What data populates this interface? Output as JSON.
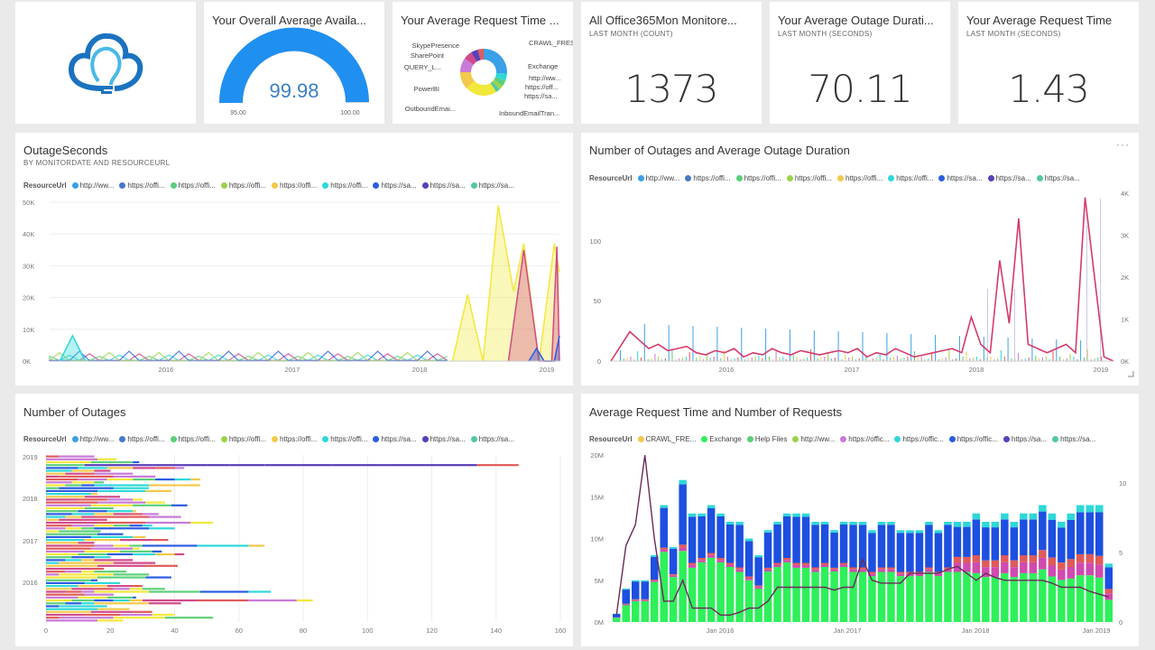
{
  "tiles": {
    "logo": {
      "icon": "lightbulb-cloud-logo"
    },
    "availability": {
      "title": "Your Overall Average Availa...",
      "value": "99.98",
      "min": "95.00",
      "max": "100.00",
      "fraction": 0.996
    },
    "request_time_donut": {
      "title": "Your Average Request Time ..."
    },
    "monitors": {
      "title": "All Office365Mon Monitore...",
      "subtitle": "LAST MONTH (COUNT)",
      "value": "1373"
    },
    "outage_duration": {
      "title": "Your Average Outage Durati...",
      "subtitle": "LAST MONTH (SECONDS)",
      "value": "70.11"
    },
    "request_time": {
      "title": "Your Average Request Time",
      "subtitle": "LAST MONTH (SECONDS)",
      "value": "1.43"
    },
    "outage_seconds": {
      "title": "OutageSeconds",
      "subtitle": "BY MONITORDATE AND RESOURCEURL"
    },
    "outages_duration": {
      "title": "Number of Outages and Average Outage Duration",
      "menu": "···"
    },
    "num_outages": {
      "title": "Number of Outages"
    },
    "req_time_count": {
      "title": "Average Request Time and Number of Requests"
    }
  },
  "legends": {
    "resource": {
      "title": "ResourceUrl",
      "items": [
        {
          "label": "http://ww...",
          "color": "#3aa0e8"
        },
        {
          "label": "https://offi...",
          "color": "#4a78c8"
        },
        {
          "label": "https://offi...",
          "color": "#5ccf7a"
        },
        {
          "label": "https://offi...",
          "color": "#9bd34a"
        },
        {
          "label": "https://offi...",
          "color": "#f2c94c"
        },
        {
          "label": "https://offi...",
          "color": "#2ed8d8"
        },
        {
          "label": "https://sa...",
          "color": "#2b5de0"
        },
        {
          "label": "https://sa...",
          "color": "#5a3fb8"
        },
        {
          "label": "https://sa...",
          "color": "#52c8a0"
        }
      ]
    },
    "requests": {
      "title": "ResourceUrl",
      "items": [
        {
          "label": "CRAWL_FRE...",
          "color": "#f2c94c"
        },
        {
          "label": "Exchange",
          "color": "#2ef05a"
        },
        {
          "label": "Help Files",
          "color": "#5ccf7a"
        },
        {
          "label": "http://ww...",
          "color": "#9bd34a"
        },
        {
          "label": "https://offic...",
          "color": "#c87ad8"
        },
        {
          "label": "https://offic...",
          "color": "#2ed8d8"
        },
        {
          "label": "https://offic...",
          "color": "#2b5de0"
        },
        {
          "label": "https://sa...",
          "color": "#5a3fb8"
        },
        {
          "label": "https://sa...",
          "color": "#52c8a0"
        }
      ]
    }
  },
  "chart_data": [
    {
      "type": "pie",
      "title": "Your Average Request Time ...",
      "slices": [
        {
          "label": "CRAWL_FRESH...",
          "value": 26,
          "color": "#3aa0e8"
        },
        {
          "label": "Exchange",
          "value": 5,
          "color": "#2ed8d8"
        },
        {
          "label": "http://ww...",
          "value": 4,
          "color": "#5ccf7a"
        },
        {
          "label": "https://off...",
          "value": 3,
          "color": "#9bd34a"
        },
        {
          "label": "https://sa...",
          "value": 3,
          "color": "#52c8a0"
        },
        {
          "label": "InboundEmailTran...",
          "value": 22,
          "color": "#f2e83a"
        },
        {
          "label": "OutboundEmai...",
          "value": 12,
          "color": "#f2c94c"
        },
        {
          "label": "PowerBI",
          "value": 10,
          "color": "#c87ad8"
        },
        {
          "label": "QUERY_L...",
          "value": 6,
          "color": "#d04a8a"
        },
        {
          "label": "SharePoint",
          "value": 5,
          "color": "#5a3fb8"
        },
        {
          "label": "SkypePresence",
          "value": 4,
          "color": "#e05a5a"
        }
      ]
    },
    {
      "type": "area",
      "title": "OutageSeconds",
      "x_ticks": [
        "2016",
        "2017",
        "2018",
        "2019"
      ],
      "y_ticks": [
        "50K",
        "40K",
        "30K",
        "20K",
        "10K",
        "0K"
      ],
      "ylim": [
        0,
        50000
      ],
      "series": [
        {
          "name": "https://offi... (yellow)",
          "color": "#f2e83a",
          "points": [
            [
              0.79,
              0
            ],
            [
              0.82,
              21000
            ],
            [
              0.85,
              0
            ],
            [
              0.88,
              49000
            ],
            [
              0.91,
              22000
            ],
            [
              0.93,
              37000
            ],
            [
              0.96,
              0
            ],
            [
              0.99,
              37000
            ],
            [
              1.0,
              28000
            ]
          ]
        },
        {
          "name": "https://sa... (magenta)",
          "color": "#d04a8a",
          "points": [
            [
              0.9,
              0
            ],
            [
              0.93,
              35000
            ],
            [
              0.96,
              0
            ],
            [
              0.985,
              0
            ],
            [
              0.995,
              36000
            ],
            [
              1.0,
              0
            ]
          ]
        },
        {
          "name": "http://ww... (cyan)",
          "color": "#2ed8d8",
          "points": [
            [
              0.02,
              0
            ],
            [
              0.045,
              8000
            ],
            [
              0.07,
              0
            ]
          ]
        },
        {
          "name": "https://sa... (blue)",
          "color": "#2b5de0",
          "points": [
            [
              0.94,
              0
            ],
            [
              0.955,
              4000
            ],
            [
              0.97,
              0
            ],
            [
              0.99,
              0
            ],
            [
              1.0,
              8000
            ]
          ]
        }
      ]
    },
    {
      "type": "bar",
      "title": "Number of Outages and Average Outage Duration",
      "y_ticks_left": [
        "100",
        "50",
        "0"
      ],
      "y_ticks_right": [
        "4K",
        "3K",
        "2K",
        "1K",
        "0K"
      ],
      "x_ticks": [
        "2016",
        "2017",
        "2018",
        "2019"
      ],
      "line_series": {
        "name": "Average Outage Duration",
        "color": "#d63a6a",
        "values": [
          0,
          350,
          700,
          500,
          300,
          400,
          250,
          300,
          350,
          200,
          150,
          250,
          200,
          300,
          100,
          200,
          150,
          300,
          200,
          150,
          250,
          200,
          150,
          200,
          250,
          200,
          300,
          100,
          200,
          150,
          300,
          200,
          100,
          150,
          200,
          250,
          300,
          200,
          1050,
          400,
          200,
          2400,
          900,
          3400,
          400,
          300,
          200,
          300,
          400,
          200,
          3900,
          2000,
          100,
          0
        ]
      }
    },
    {
      "type": "bar",
      "title": "Number of Outages",
      "orientation": "horizontal",
      "x_ticks": [
        "0",
        "20",
        "40",
        "60",
        "80",
        "100",
        "120",
        "140",
        "160"
      ],
      "y_ticks": [
        "2019",
        "2018",
        "2017",
        "2016"
      ],
      "xlim": [
        0,
        160
      ]
    },
    {
      "type": "bar",
      "title": "Average Request Time and Number of Requests",
      "y_ticks_left": [
        "20M",
        "15M",
        "10M",
        "5M",
        "0M"
      ],
      "y_ticks_right": [
        "10",
        "5",
        "0"
      ],
      "x_ticks": [
        "Jan 2016",
        "Jan 2017",
        "Jan 2018",
        "Jan 2019"
      ],
      "ylim": [
        0,
        20000000
      ],
      "stack_totals": [
        1,
        4,
        5,
        5,
        8,
        14,
        9,
        17,
        13,
        13,
        14,
        13,
        12,
        12,
        10,
        8,
        11,
        12,
        13,
        13,
        13,
        12,
        12,
        11,
        12,
        12,
        12,
        11,
        12,
        12,
        11,
        11,
        11,
        12,
        11,
        12,
        12,
        12,
        13,
        12,
        12,
        13,
        12,
        13,
        13,
        14,
        13,
        12,
        13,
        14,
        14,
        14,
        7
      ],
      "exchange_share": [
        0.5,
        0.5,
        0.5,
        0.5,
        0.6,
        0.6,
        0.6,
        0.5,
        0.5,
        0.55,
        0.55,
        0.55,
        0.55,
        0.5,
        0.5,
        0.5,
        0.55,
        0.55,
        0.55,
        0.5,
        0.5,
        0.5,
        0.55,
        0.55,
        0.55,
        0.5,
        0.5,
        0.5,
        0.5,
        0.5,
        0.5,
        0.5,
        0.5,
        0.5,
        0.5,
        0.5,
        0.5,
        0.5,
        0.45,
        0.45,
        0.45,
        0.45,
        0.45,
        0.45,
        0.45,
        0.45,
        0.42,
        0.42,
        0.4,
        0.4,
        0.4,
        0.38,
        0.38
      ],
      "line_values": [
        0.5,
        5.5,
        7,
        12,
        6,
        1.5,
        1.5,
        3,
        1,
        1,
        1,
        0.5,
        0.5,
        0.7,
        1,
        1,
        1.5,
        2.5,
        2.5,
        2.5,
        2.5,
        2.5,
        2.5,
        2.3,
        2.5,
        2.5,
        4.5,
        3,
        2.8,
        2.8,
        2.8,
        3.5,
        3.5,
        3.5,
        3.5,
        3.8,
        4,
        3.5,
        3,
        3.5,
        3.2,
        3,
        3,
        3,
        3,
        3,
        2.8,
        2.5,
        2.5,
        2.5,
        2.2,
        2.0,
        1.8
      ]
    }
  ]
}
